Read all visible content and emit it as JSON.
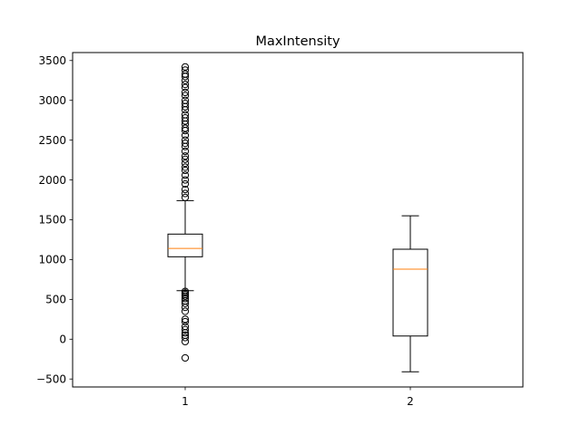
{
  "chart_data": {
    "type": "box",
    "title": "MaxIntensity",
    "xlabel": "",
    "ylabel": "",
    "ylim": [
      -600,
      3600
    ],
    "yticks": [
      -500,
      0,
      500,
      1000,
      1500,
      2000,
      2500,
      3000,
      3500
    ],
    "ytick_labels": [
      "−500",
      "0",
      "500",
      "1000",
      "1500",
      "2000",
      "2500",
      "3000",
      "3500"
    ],
    "categories": [
      "1",
      "2"
    ],
    "grid": false,
    "colors": {
      "box": "#000000",
      "median": "#ff7f0e",
      "flier": "#000000"
    },
    "boxes": [
      {
        "name": "1",
        "whisker_low": 610,
        "q1": 1035,
        "median": 1140,
        "q3": 1320,
        "whisker_high": 1740,
        "fliers": [
          -235,
          -30,
          20,
          50,
          80,
          120,
          160,
          220,
          250,
          350,
          400,
          450,
          480,
          510,
          540,
          560,
          580,
          600,
          1780,
          1830,
          1880,
          1950,
          2000,
          2060,
          2120,
          2160,
          2210,
          2260,
          2300,
          2360,
          2420,
          2460,
          2500,
          2560,
          2620,
          2650,
          2700,
          2740,
          2780,
          2820,
          2880,
          2920,
          2960,
          3000,
          3060,
          3100,
          3160,
          3200,
          3250,
          3300,
          3330,
          3380,
          3420
        ]
      },
      {
        "name": "2",
        "whisker_low": -410,
        "q1": 40,
        "median": 880,
        "q3": 1130,
        "whisker_high": 1550,
        "fliers": []
      }
    ]
  }
}
